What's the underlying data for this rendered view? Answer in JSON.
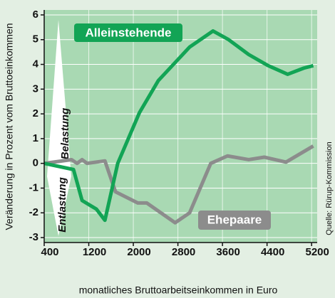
{
  "chart_data": {
    "type": "line",
    "ylabel": "Veränderung in Prozent vom Bruttoeinkommen",
    "xlabel": "monatliches Bruttoarbeitseinkommen in Euro",
    "source": "Quelle: Rürup-Kommission",
    "annotations": [
      "Belastung",
      "Entlastung"
    ],
    "xlim": [
      400,
      5300
    ],
    "xticks": [
      400,
      1200,
      2000,
      2800,
      3600,
      4400,
      5200
    ],
    "ylim": [
      -3.2,
      6.2
    ],
    "yticks": [
      -3,
      -2,
      -1,
      0,
      1,
      2,
      3,
      4,
      5,
      6
    ],
    "grid": true,
    "series": [
      {
        "name": "Alleinstehende",
        "color": "#12a455",
        "x": [
          400,
          926,
          1080,
          1337,
          1490,
          1720,
          2110,
          2450,
          3010,
          3430,
          3710,
          4070,
          4420,
          4770,
          5060,
          5230
        ],
        "values": [
          0,
          -0.25,
          -1.5,
          -1.85,
          -2.3,
          0,
          2.05,
          3.35,
          4.7,
          5.35,
          5.0,
          4.4,
          3.95,
          3.6,
          3.85,
          3.95
        ]
      },
      {
        "name": "Ehepaare",
        "color": "#8c8c8c",
        "x": [
          400,
          890,
          990,
          1080,
          1170,
          1490,
          1680,
          2080,
          2240,
          2750,
          3010,
          3390,
          3690,
          4070,
          4350,
          4740,
          5230
        ],
        "values": [
          0,
          0.15,
          0,
          0.15,
          0,
          0.1,
          -1.15,
          -1.6,
          -1.6,
          -2.4,
          -2.0,
          0,
          0.3,
          0.15,
          0.25,
          0.05,
          0.7
        ]
      }
    ]
  }
}
